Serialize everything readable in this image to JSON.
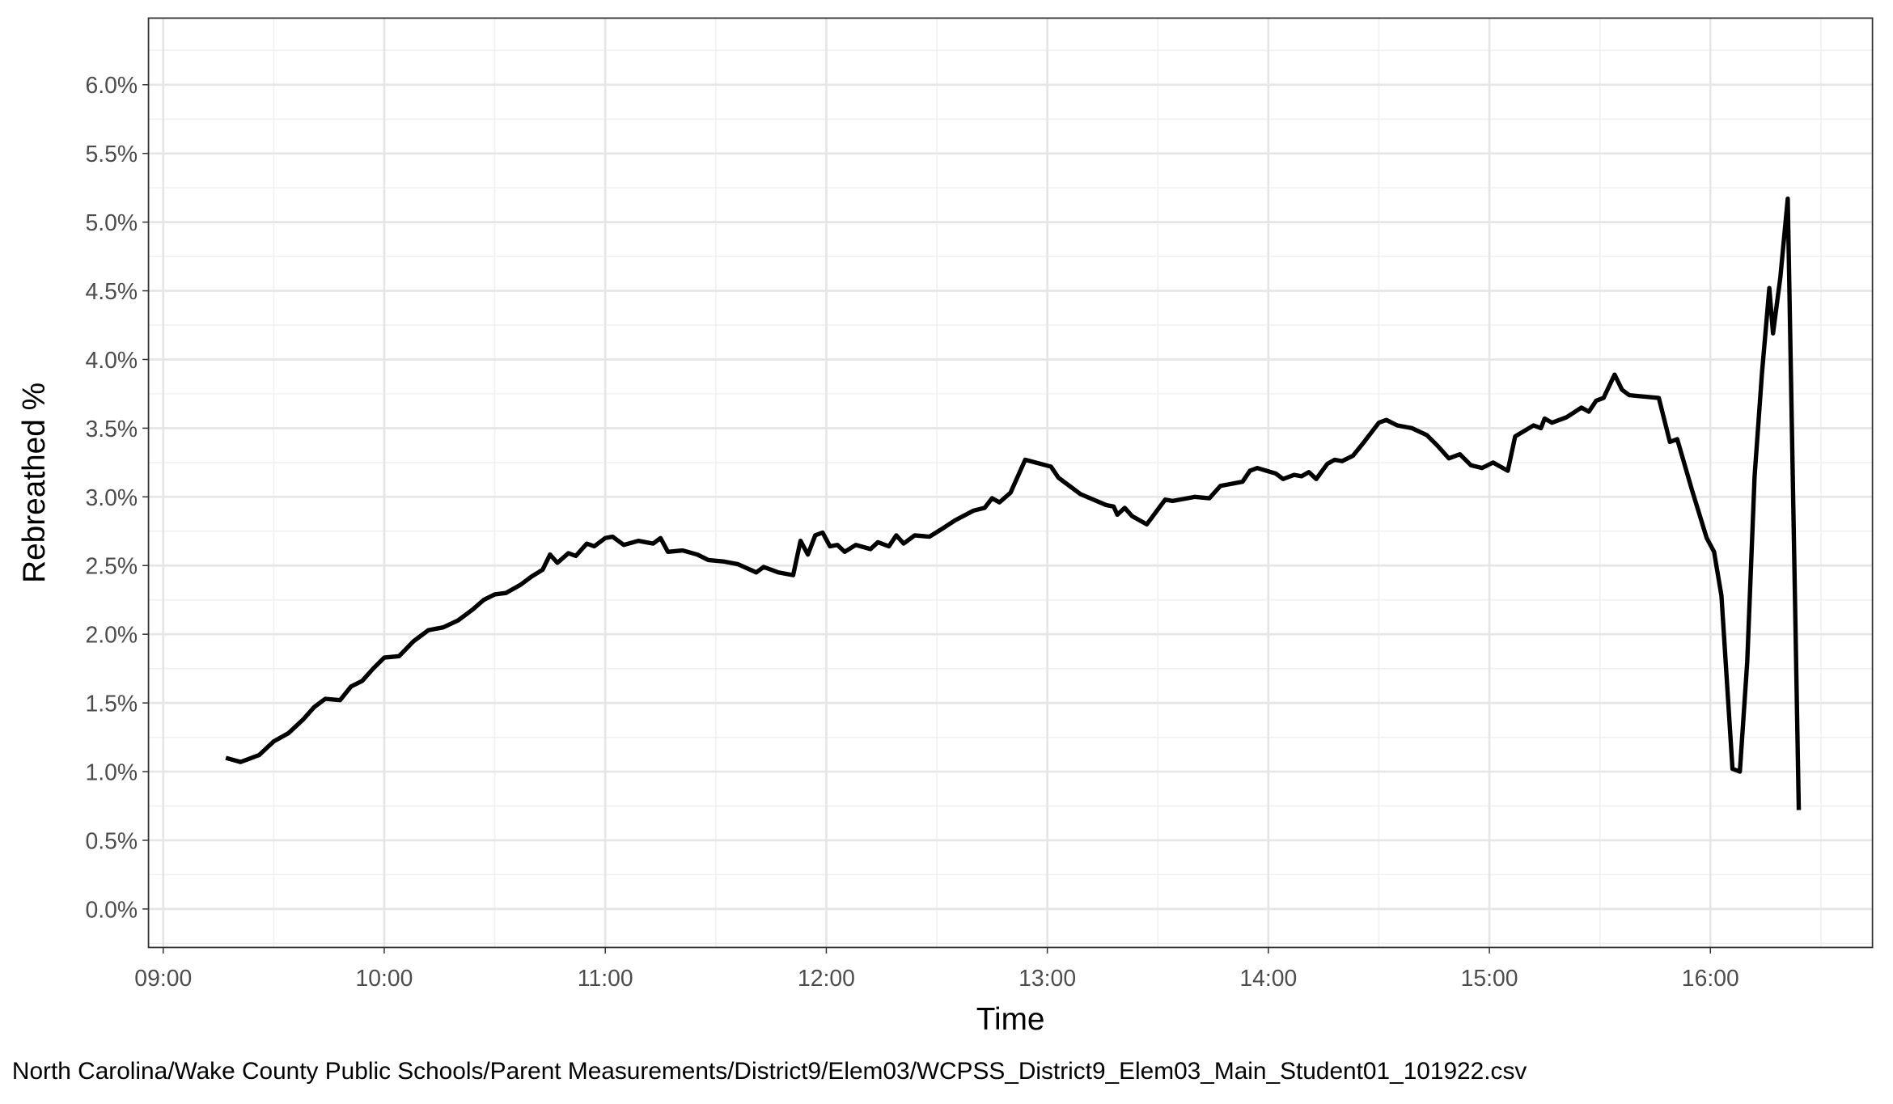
{
  "chart_data": {
    "type": "line",
    "xlabel": "Time",
    "ylabel": "Rebreathed %",
    "caption": "North Carolina/Wake County Public Schools/Parent Measurements/District9/Elem03/WCPSS_District9_Elem03_Main_Student01_101922.csv",
    "color": "#000000",
    "grid": true,
    "minor_grid": true,
    "xlim": [
      "08:56",
      "16:44"
    ],
    "xticks": [
      "09:00",
      "10:00",
      "11:00",
      "12:00",
      "13:00",
      "14:00",
      "15:00",
      "16:00"
    ],
    "ylim": [
      -0.28,
      6.485
    ],
    "yticks": [
      {
        "value": 0,
        "label": "0.0%"
      },
      {
        "value": 0.5,
        "label": "0.5%"
      },
      {
        "value": 1,
        "label": "1.0%"
      },
      {
        "value": 1.5,
        "label": "1.5%"
      },
      {
        "value": 2,
        "label": "2.0%"
      },
      {
        "value": 2.5,
        "label": "2.5%"
      },
      {
        "value": 3,
        "label": "3.0%"
      },
      {
        "value": 3.5,
        "label": "3.5%"
      },
      {
        "value": 4,
        "label": "4.0%"
      },
      {
        "value": 4.5,
        "label": "4.5%"
      },
      {
        "value": 5,
        "label": "5.0%"
      },
      {
        "value": 5.5,
        "label": "5.5%"
      },
      {
        "value": 6,
        "label": "6.0%"
      }
    ],
    "x": [
      "09:17",
      "09:21",
      "09:26",
      "09:30",
      "09:34",
      "09:38",
      "09:41",
      "09:44",
      "09:48",
      "09:51",
      "09:54",
      "09:57",
      "10:00",
      "10:04",
      "10:08",
      "10:12",
      "10:16",
      "10:20",
      "10:24",
      "10:27",
      "10:30",
      "10:33",
      "10:37",
      "10:40",
      "10:43",
      "10:45",
      "10:47",
      "10:50",
      "10:52",
      "10:55",
      "10:57",
      "11:00",
      "11:02",
      "11:05",
      "11:09",
      "11:13",
      "11:15",
      "11:17",
      "11:21",
      "11:25",
      "11:28",
      "11:32",
      "11:36",
      "11:41",
      "11:43",
      "11:47",
      "11:51",
      "11:53",
      "11:55",
      "11:57",
      "11:59",
      "12:01",
      "12:03",
      "12:05",
      "12:08",
      "12:12",
      "12:14",
      "12:17",
      "12:19",
      "12:21",
      "12:24",
      "12:28",
      "12:31",
      "12:35",
      "12:40",
      "12:43",
      "12:45",
      "12:47",
      "12:50",
      "12:54",
      "13:01",
      "13:03",
      "13:09",
      "13:16",
      "13:18",
      "13:19",
      "13:21",
      "13:23",
      "13:27",
      "13:32",
      "13:34",
      "13:40",
      "13:44",
      "13:47",
      "13:53",
      "13:55",
      "13:57",
      "14:02",
      "14:04",
      "14:07",
      "14:09",
      "14:11",
      "14:13",
      "14:16",
      "14:18",
      "14:20",
      "14:23",
      "14:26",
      "14:30",
      "14:32",
      "14:35",
      "14:39",
      "14:43",
      "14:46",
      "14:49",
      "14:52",
      "14:55",
      "14:58",
      "15:01",
      "15:05",
      "15:07",
      "15:12",
      "15:14",
      "15:15",
      "15:17",
      "15:21",
      "15:25",
      "15:27",
      "15:29",
      "15:31",
      "15:34",
      "15:36",
      "15:38",
      "15:46",
      "15:49",
      "15:51",
      "15:55",
      "15:59",
      "16:01",
      "16:03",
      "16:06",
      "16:08",
      "16:10",
      "16:12",
      "16:14",
      "16:16",
      "16:17",
      "16:19",
      "16:21",
      "16:24"
    ],
    "values": [
      1.1,
      1.07,
      1.12,
      1.22,
      1.28,
      1.38,
      1.47,
      1.53,
      1.52,
      1.62,
      1.66,
      1.75,
      1.83,
      1.84,
      1.95,
      2.03,
      2.05,
      2.1,
      2.18,
      2.25,
      2.29,
      2.3,
      2.36,
      2.42,
      2.47,
      2.58,
      2.52,
      2.59,
      2.57,
      2.66,
      2.64,
      2.7,
      2.71,
      2.65,
      2.68,
      2.66,
      2.7,
      2.6,
      2.61,
      2.58,
      2.54,
      2.53,
      2.51,
      2.45,
      2.49,
      2.45,
      2.43,
      2.68,
      2.58,
      2.72,
      2.74,
      2.64,
      2.65,
      2.6,
      2.65,
      2.62,
      2.67,
      2.64,
      2.72,
      2.66,
      2.72,
      2.71,
      2.76,
      2.83,
      2.9,
      2.92,
      2.99,
      2.96,
      3.03,
      3.27,
      3.22,
      3.14,
      3.02,
      2.94,
      2.93,
      2.87,
      2.92,
      2.86,
      2.8,
      2.98,
      2.97,
      3.0,
      2.99,
      3.08,
      3.11,
      3.19,
      3.21,
      3.17,
      3.13,
      3.16,
      3.15,
      3.18,
      3.13,
      3.24,
      3.27,
      3.26,
      3.3,
      3.4,
      3.54,
      3.56,
      3.52,
      3.5,
      3.45,
      3.37,
      3.28,
      3.31,
      3.23,
      3.21,
      3.25,
      3.19,
      3.44,
      3.52,
      3.5,
      3.57,
      3.54,
      3.58,
      3.65,
      3.62,
      3.7,
      3.72,
      3.89,
      3.78,
      3.74,
      3.72,
      3.4,
      3.42,
      3.05,
      2.7,
      2.6,
      2.28,
      1.02,
      1.0,
      1.8,
      3.15,
      3.9,
      4.52,
      4.19,
      4.6,
      5.17,
      0.72
    ]
  }
}
